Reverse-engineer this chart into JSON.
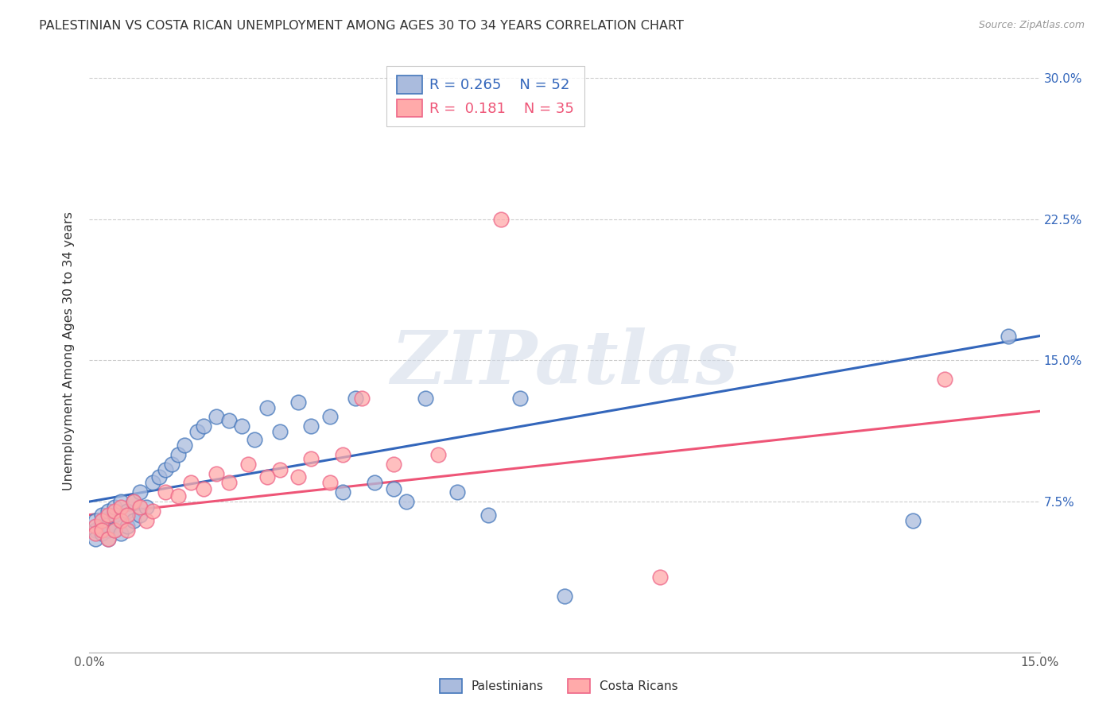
{
  "title": "PALESTINIAN VS COSTA RICAN UNEMPLOYMENT AMONG AGES 30 TO 34 YEARS CORRELATION CHART",
  "source": "Source: ZipAtlas.com",
  "ylabel": "Unemployment Among Ages 30 to 34 years",
  "xlim": [
    0.0,
    0.15
  ],
  "ylim": [
    -0.005,
    0.315
  ],
  "xtick_positions": [
    0.0,
    0.05,
    0.1,
    0.15
  ],
  "xtick_labels": [
    "0.0%",
    "",
    "",
    "15.0%"
  ],
  "ytick_positions": [
    0.075,
    0.15,
    0.225,
    0.3
  ],
  "ytick_labels": [
    "7.5%",
    "15.0%",
    "22.5%",
    "30.0%"
  ],
  "legend_r_blue": "0.265",
  "legend_n_blue": "52",
  "legend_r_pink": "0.181",
  "legend_n_pink": "35",
  "blue_fill": "#aabbdd",
  "pink_fill": "#ffaaaa",
  "blue_edge": "#4477bb",
  "pink_edge": "#ee6688",
  "line_blue": "#3366bb",
  "line_pink": "#ee5577",
  "watermark": "ZIPatlas",
  "palestinians_x": [
    0.001,
    0.001,
    0.001,
    0.002,
    0.002,
    0.002,
    0.003,
    0.003,
    0.003,
    0.003,
    0.004,
    0.004,
    0.004,
    0.005,
    0.005,
    0.005,
    0.006,
    0.006,
    0.007,
    0.007,
    0.008,
    0.008,
    0.009,
    0.01,
    0.011,
    0.012,
    0.013,
    0.014,
    0.015,
    0.017,
    0.018,
    0.02,
    0.022,
    0.024,
    0.026,
    0.028,
    0.03,
    0.033,
    0.035,
    0.038,
    0.04,
    0.042,
    0.045,
    0.048,
    0.05,
    0.053,
    0.058,
    0.063,
    0.068,
    0.075,
    0.13,
    0.145
  ],
  "palestinians_y": [
    0.06,
    0.065,
    0.055,
    0.062,
    0.068,
    0.058,
    0.063,
    0.07,
    0.06,
    0.055,
    0.068,
    0.072,
    0.06,
    0.075,
    0.065,
    0.058,
    0.07,
    0.062,
    0.075,
    0.065,
    0.08,
    0.068,
    0.072,
    0.085,
    0.088,
    0.092,
    0.095,
    0.1,
    0.105,
    0.112,
    0.115,
    0.12,
    0.118,
    0.115,
    0.108,
    0.125,
    0.112,
    0.128,
    0.115,
    0.12,
    0.08,
    0.13,
    0.085,
    0.082,
    0.075,
    0.13,
    0.08,
    0.068,
    0.13,
    0.025,
    0.065,
    0.163
  ],
  "costa_rican_x": [
    0.001,
    0.001,
    0.002,
    0.002,
    0.003,
    0.003,
    0.004,
    0.004,
    0.005,
    0.005,
    0.006,
    0.006,
    0.007,
    0.008,
    0.009,
    0.01,
    0.012,
    0.014,
    0.016,
    0.018,
    0.02,
    0.022,
    0.025,
    0.028,
    0.03,
    0.033,
    0.035,
    0.038,
    0.04,
    0.043,
    0.048,
    0.055,
    0.065,
    0.09,
    0.135
  ],
  "costa_rican_y": [
    0.062,
    0.058,
    0.065,
    0.06,
    0.068,
    0.055,
    0.07,
    0.06,
    0.072,
    0.065,
    0.068,
    0.06,
    0.075,
    0.072,
    0.065,
    0.07,
    0.08,
    0.078,
    0.085,
    0.082,
    0.09,
    0.085,
    0.095,
    0.088,
    0.092,
    0.088,
    0.098,
    0.085,
    0.1,
    0.13,
    0.095,
    0.1,
    0.225,
    0.035,
    0.14
  ],
  "blue_line_x": [
    0.0,
    0.15
  ],
  "blue_line_y": [
    0.075,
    0.163
  ],
  "pink_line_x": [
    0.0,
    0.15
  ],
  "pink_line_y": [
    0.068,
    0.123
  ],
  "figsize": [
    14.06,
    8.92
  ],
  "dpi": 100
}
